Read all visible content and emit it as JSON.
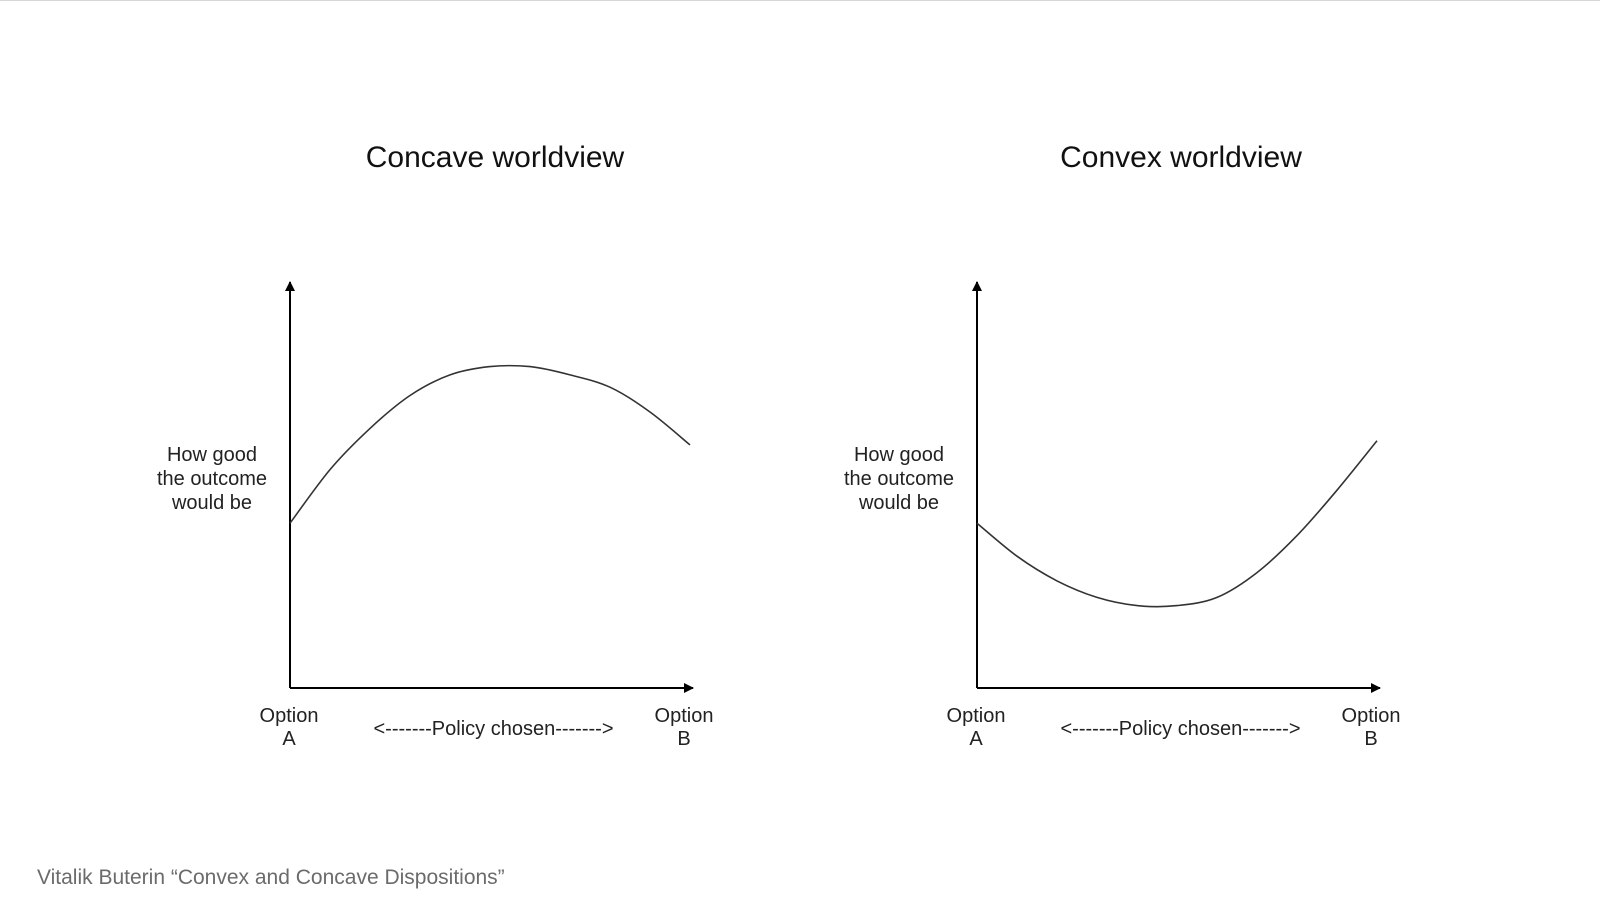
{
  "slide": {
    "caption": "Vitalik Buterin “Convex and Concave Dispositions”"
  },
  "chart_data": [
    {
      "type": "line",
      "title": "Concave worldview",
      "ylabel": [
        "How good",
        "the outcome",
        "would be"
      ],
      "xlabel": "<-------Policy chosen------->",
      "x_start_label": [
        "Option",
        "A"
      ],
      "x_end_label": [
        "Option",
        "B"
      ],
      "x": [
        0,
        0.1,
        0.2,
        0.3,
        0.4,
        0.5,
        0.6,
        0.7,
        0.8,
        0.9,
        1
      ],
      "y": [
        0.4,
        0.53,
        0.63,
        0.71,
        0.76,
        0.78,
        0.78,
        0.76,
        0.73,
        0.67,
        0.59
      ],
      "xlim": [
        0,
        1
      ],
      "ylim": [
        0,
        1
      ],
      "grid": false,
      "line_color": "#333333",
      "axis_color": "#000000"
    },
    {
      "type": "line",
      "title": "Convex worldview",
      "ylabel": [
        "How good",
        "the outcome",
        "would be"
      ],
      "xlabel": "<-------Policy chosen------->",
      "x_start_label": [
        "Option",
        "A"
      ],
      "x_end_label": [
        "Option",
        "B"
      ],
      "x": [
        0,
        0.1,
        0.2,
        0.3,
        0.4,
        0.5,
        0.6,
        0.7,
        0.8,
        0.9,
        1
      ],
      "y": [
        0.4,
        0.32,
        0.26,
        0.22,
        0.2,
        0.2,
        0.22,
        0.28,
        0.37,
        0.48,
        0.6
      ],
      "xlim": [
        0,
        1
      ],
      "ylim": [
        0,
        1
      ],
      "grid": false,
      "line_color": "#333333",
      "axis_color": "#000000"
    }
  ]
}
